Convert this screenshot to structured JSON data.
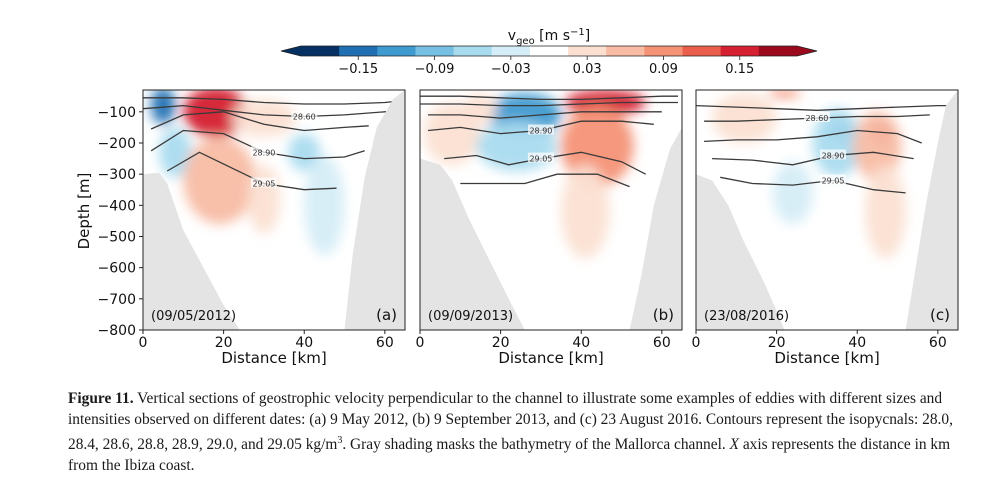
{
  "colorbar": {
    "label_prefix": "v",
    "label_sub": "geo",
    "label_units": "[m s",
    "label_exp": "−1",
    "label_close": "]",
    "ticks": [
      "−0.15",
      "−0.09",
      "−0.03",
      "0.03",
      "0.09",
      "0.15"
    ],
    "colors": [
      "#053061",
      "#1f6fb2",
      "#3f9ad0",
      "#75c0e3",
      "#a9dbef",
      "#d5edf7",
      "#ffffff",
      "#fbe0d2",
      "#f8bca4",
      "#f49276",
      "#ea5e4c",
      "#d42030",
      "#9a0a1c"
    ]
  },
  "chart_data": [
    {
      "type": "heatmap",
      "panel_label": "(a)",
      "date_label": "(09/05/2012)",
      "xlabel": "Distance [km]",
      "ylabel": "Depth [m]",
      "xlim": [
        0,
        65
      ],
      "ylim": [
        -800,
        -30
      ],
      "xticks": [
        "0",
        "20",
        "40",
        "60"
      ],
      "yticks": [
        "−100",
        "−200",
        "−300",
        "−400",
        "−500",
        "−600",
        "−700",
        "−800"
      ],
      "isopycnal_labels": [
        "28.60",
        "28.90",
        "29.05"
      ],
      "bathymetry_left": [
        [
          0,
          -300
        ],
        [
          4,
          -295
        ],
        [
          6,
          -330
        ],
        [
          10,
          -480
        ],
        [
          15,
          -600
        ],
        [
          20,
          -720
        ],
        [
          24,
          -800
        ],
        [
          0,
          -800
        ]
      ],
      "bathymetry_right": [
        [
          65,
          -30
        ],
        [
          62,
          -60
        ],
        [
          58,
          -150
        ],
        [
          55,
          -310
        ],
        [
          52,
          -560
        ],
        [
          50,
          -800
        ],
        [
          65,
          -800
        ]
      ],
      "velocity_features": [
        {
          "x": 5,
          "depth": -80,
          "v": -0.15,
          "rx": 3,
          "ry": 60
        },
        {
          "x": 8,
          "depth": -230,
          "v": -0.06,
          "rx": 4,
          "ry": 80
        },
        {
          "x": 18,
          "depth": -100,
          "v": 0.15,
          "rx": 8,
          "ry": 80
        },
        {
          "x": 19,
          "depth": -320,
          "v": 0.05,
          "rx": 9,
          "ry": 140
        },
        {
          "x": 30,
          "depth": -120,
          "v": 0.03,
          "rx": 8,
          "ry": 60
        },
        {
          "x": 30,
          "depth": -380,
          "v": 0.03,
          "rx": 4,
          "ry": 110
        },
        {
          "x": 40,
          "depth": -230,
          "v": -0.05,
          "rx": 4,
          "ry": 60
        },
        {
          "x": 45,
          "depth": -400,
          "v": -0.02,
          "rx": 5,
          "ry": 160
        }
      ],
      "isopycnals": [
        {
          "x": [
            0,
            10,
            20,
            30,
            40,
            50,
            60,
            64
          ],
          "depth": [
            -55,
            -55,
            -60,
            -70,
            -75,
            -75,
            -70,
            -65
          ]
        },
        {
          "x": [
            0,
            10,
            20,
            30,
            40,
            50,
            60,
            64
          ],
          "depth": [
            -90,
            -80,
            -95,
            -110,
            -115,
            -110,
            -100,
            -95
          ]
        },
        {
          "x": [
            2,
            10,
            20,
            30,
            40,
            50,
            56
          ],
          "depth": [
            -155,
            -110,
            -100,
            -140,
            -160,
            -150,
            -145
          ]
        },
        {
          "x": [
            2,
            10,
            20,
            30,
            40,
            50,
            55
          ],
          "depth": [
            -225,
            -160,
            -170,
            -230,
            -250,
            -245,
            -225
          ]
        },
        {
          "x": [
            6,
            14,
            22,
            30,
            40,
            48
          ],
          "depth": [
            -290,
            -230,
            -280,
            -330,
            -350,
            -345
          ]
        }
      ]
    },
    {
      "type": "heatmap",
      "panel_label": "(b)",
      "date_label": "(09/09/2013)",
      "xlabel": "Distance [km]",
      "ylabel": "",
      "xlim": [
        0,
        65
      ],
      "ylim": [
        -800,
        -30
      ],
      "xticks": [
        "0",
        "20",
        "40",
        "60"
      ],
      "yticks": [],
      "isopycnal_labels": [
        "28.90",
        "29.05"
      ],
      "bathymetry_left": [
        [
          0,
          -250
        ],
        [
          5,
          -270
        ],
        [
          8,
          -320
        ],
        [
          12,
          -440
        ],
        [
          17,
          -570
        ],
        [
          22,
          -700
        ],
        [
          26,
          -800
        ],
        [
          0,
          -800
        ]
      ],
      "bathymetry_right": [
        [
          65,
          -150
        ],
        [
          62,
          -220
        ],
        [
          58,
          -400
        ],
        [
          55,
          -620
        ],
        [
          52,
          -800
        ],
        [
          65,
          -800
        ]
      ],
      "velocity_features": [
        {
          "x": 8,
          "depth": -170,
          "v": 0.03,
          "rx": 7,
          "ry": 100
        },
        {
          "x": 26,
          "depth": -110,
          "v": -0.12,
          "rx": 9,
          "ry": 70
        },
        {
          "x": 24,
          "depth": -210,
          "v": -0.05,
          "rx": 10,
          "ry": 80
        },
        {
          "x": 46,
          "depth": -70,
          "v": 0.15,
          "rx": 10,
          "ry": 40
        },
        {
          "x": 44,
          "depth": -210,
          "v": 0.08,
          "rx": 9,
          "ry": 130
        },
        {
          "x": 41,
          "depth": -420,
          "v": 0.03,
          "rx": 6,
          "ry": 150
        },
        {
          "x": 15,
          "depth": -90,
          "v": 0.04,
          "rx": 4,
          "ry": 50
        }
      ],
      "isopycnals": [
        {
          "x": [
            0,
            10,
            20,
            30,
            40,
            50,
            60,
            64
          ],
          "depth": [
            -50,
            -50,
            -55,
            -60,
            -60,
            -55,
            -50,
            -50
          ]
        },
        {
          "x": [
            0,
            10,
            20,
            30,
            40,
            50,
            60,
            64
          ],
          "depth": [
            -75,
            -75,
            -80,
            -80,
            -75,
            -70,
            -70,
            -70
          ]
        },
        {
          "x": [
            2,
            10,
            20,
            30,
            40,
            50,
            60
          ],
          "depth": [
            -110,
            -110,
            -120,
            -110,
            -100,
            -100,
            -100
          ]
        },
        {
          "x": [
            2,
            10,
            20,
            30,
            40,
            50,
            58
          ],
          "depth": [
            -160,
            -150,
            -170,
            -160,
            -130,
            -130,
            -140
          ]
        },
        {
          "x": [
            6,
            14,
            22,
            30,
            40,
            50,
            56
          ],
          "depth": [
            -250,
            -240,
            -270,
            -250,
            -230,
            -260,
            -300
          ]
        },
        {
          "x": [
            10,
            18,
            26,
            34,
            44,
            52
          ],
          "depth": [
            -330,
            -330,
            -330,
            -300,
            -300,
            -340
          ]
        }
      ]
    },
    {
      "type": "heatmap",
      "panel_label": "(c)",
      "date_label": "(23/08/2016)",
      "xlabel": "Distance [km]",
      "ylabel": "",
      "xlim": [
        0,
        65
      ],
      "ylim": [
        -800,
        -30
      ],
      "xticks": [
        "0",
        "20",
        "40",
        "60"
      ],
      "yticks": [],
      "isopycnal_labels": [
        "28.60",
        "28.90",
        "29.05"
      ],
      "bathymetry_left": [
        [
          0,
          -300
        ],
        [
          4,
          -320
        ],
        [
          8,
          -400
        ],
        [
          12,
          -520
        ],
        [
          17,
          -650
        ],
        [
          22,
          -800
        ],
        [
          0,
          -800
        ]
      ],
      "bathymetry_right": [
        [
          65,
          -30
        ],
        [
          62,
          -80
        ],
        [
          60,
          -200
        ],
        [
          57,
          -400
        ],
        [
          54,
          -640
        ],
        [
          52,
          -800
        ],
        [
          65,
          -800
        ]
      ],
      "velocity_features": [
        {
          "x": 22,
          "depth": -40,
          "v": 0.09,
          "rx": 4,
          "ry": 15
        },
        {
          "x": 12,
          "depth": -120,
          "v": 0.03,
          "rx": 8,
          "ry": 80
        },
        {
          "x": 36,
          "depth": -160,
          "v": -0.15,
          "rx": 3,
          "ry": 35
        },
        {
          "x": 35,
          "depth": -200,
          "v": -0.05,
          "rx": 6,
          "ry": 110
        },
        {
          "x": 46,
          "depth": -165,
          "v": 0.15,
          "rx": 3,
          "ry": 35
        },
        {
          "x": 45,
          "depth": -210,
          "v": 0.05,
          "rx": 6,
          "ry": 110
        },
        {
          "x": 47,
          "depth": -420,
          "v": 0.03,
          "rx": 5,
          "ry": 150
        },
        {
          "x": 24,
          "depth": -360,
          "v": -0.02,
          "rx": 5,
          "ry": 100
        }
      ],
      "isopycnals": [
        {
          "x": [
            0,
            10,
            20,
            30,
            40,
            50,
            60,
            64
          ],
          "depth": [
            -80,
            -85,
            -90,
            -95,
            -90,
            -85,
            -80,
            -80
          ]
        },
        {
          "x": [
            2,
            10,
            20,
            30,
            40,
            50,
            58
          ],
          "depth": [
            -130,
            -130,
            -125,
            -120,
            -115,
            -115,
            -110
          ]
        },
        {
          "x": [
            2,
            10,
            20,
            30,
            40,
            50,
            56
          ],
          "depth": [
            -195,
            -190,
            -190,
            -180,
            -160,
            -170,
            -200
          ]
        },
        {
          "x": [
            4,
            14,
            24,
            34,
            44,
            54
          ],
          "depth": [
            -250,
            -255,
            -270,
            -240,
            -230,
            -250
          ]
        },
        {
          "x": [
            6,
            14,
            24,
            34,
            44,
            52
          ],
          "depth": [
            -310,
            -330,
            -335,
            -320,
            -350,
            -360
          ]
        }
      ]
    }
  ],
  "caption": {
    "figure_label": "Figure 11.",
    "text_1": " Vertical sections of geostrophic velocity perpendicular to the channel to illustrate some examples of eddies with different sizes and intensities observed on different dates: (a) 9 May 2012, (b) 9 September 2013, and (c) 23 August 2016. Contours represent the isopycnals: 28.0, 28.4, 28.6, 28.8, 28.9, 29.0, and 29.05 kg/m",
    "superscript": "3",
    "text_2": ". Gray shading masks the bathymetry of the Mallorca channel. ",
    "italic_x": "X",
    "text_3": " axis represents the distance in km from the Ibiza coast."
  }
}
